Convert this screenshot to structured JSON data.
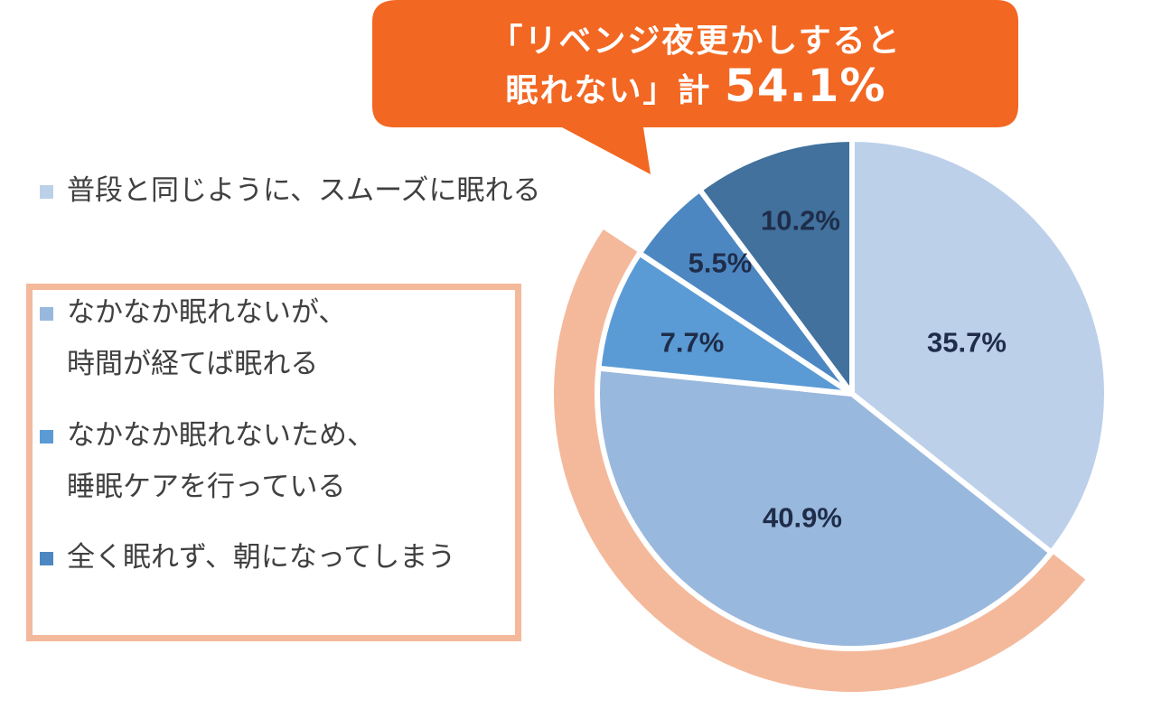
{
  "callout": {
    "line1": "「リベンジ夜更かしすると",
    "line2_prefix": "眠れない」計",
    "line2_value": "54.1%",
    "color": "#f26722"
  },
  "highlight_color": "#f4b99b",
  "chart_data": {
    "type": "pie",
    "start_angle_deg": 0,
    "direction": "clockwise",
    "slices": [
      {
        "label": "普段と同じように、スムーズに眠れる",
        "value": 35.7,
        "value_label": "35.7%",
        "color": "#bcd0ea"
      },
      {
        "label": "なかなか眠れないが、時間が経てば眠れる",
        "value": 40.9,
        "value_label": "40.9%",
        "color": "#99b8de"
      },
      {
        "label": "なかなか眠れないため、睡眠ケアを行っている",
        "value": 7.7,
        "value_label": "7.7%",
        "color": "#5b9bd5"
      },
      {
        "label": "全く眠れず、朝になってしまう",
        "value": 5.5,
        "value_label": "5.5%",
        "color": "#4d87c2"
      },
      {
        "label": "",
        "value": 10.2,
        "value_label": "10.2%",
        "color": "#41719c"
      }
    ],
    "highlighted_total": "54.1%"
  },
  "legend": [
    {
      "line1": "普段と同じように、スムーズに眠れる",
      "line2": ""
    },
    {
      "line1": "なかなか眠れないが、",
      "line2": "時間が経てば眠れる"
    },
    {
      "line1": "なかなか眠れないため、",
      "line2": "睡眠ケアを行っている"
    },
    {
      "line1": "全く眠れず、朝になってしまう",
      "line2": ""
    }
  ]
}
